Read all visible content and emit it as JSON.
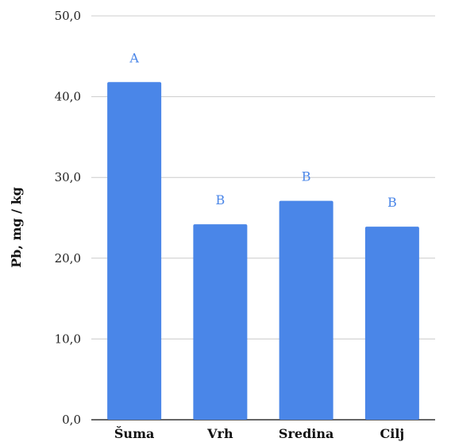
{
  "chart_data": {
    "type": "bar",
    "categories": [
      "Šuma",
      "Vrh",
      "Sredina",
      "Cilj"
    ],
    "values": [
      41.8,
      24.2,
      27.1,
      23.9
    ],
    "data_labels": [
      "A",
      "B",
      "B",
      "B"
    ],
    "title": "",
    "xlabel": "",
    "ylabel": "Pb, mg / kg",
    "ylim": [
      0,
      50
    ],
    "yticks": [
      0,
      10,
      20,
      30,
      40,
      50
    ],
    "ytick_labels": [
      "0,0",
      "10,0",
      "20,0",
      "30,0",
      "40,0",
      "50,0"
    ],
    "grid": true,
    "legend": "none",
    "bar_color": "#4a86e8",
    "label_color": "#4a86e8",
    "grid_color": "#cccccc"
  }
}
